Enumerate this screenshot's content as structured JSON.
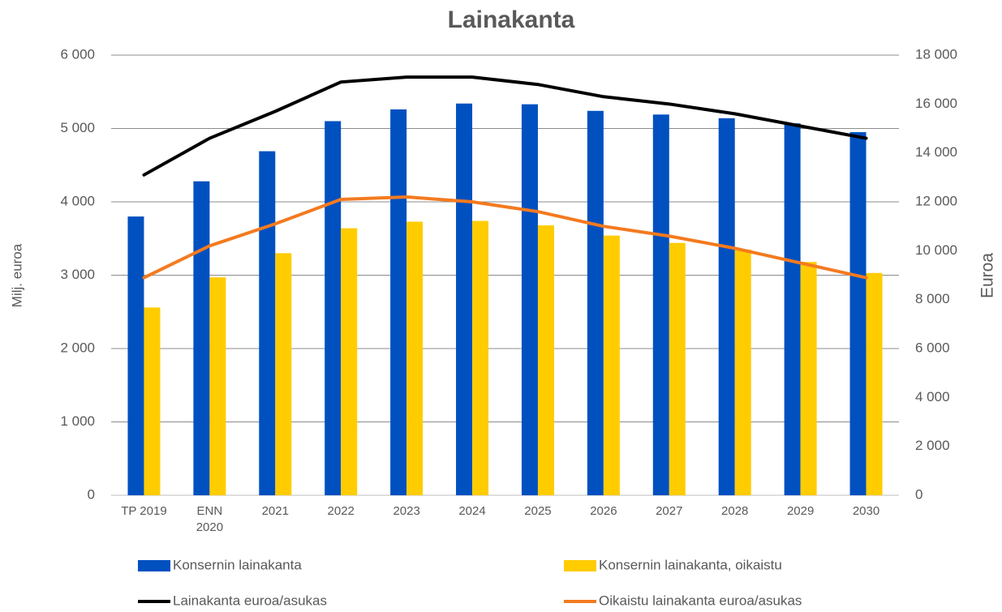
{
  "chart_data": {
    "type": "bar-line",
    "title": "Lainakanta",
    "y_label": "Milj. euroa",
    "y2_label": "Euroa",
    "categories": [
      "TP 2019",
      "ENN 2020",
      "2021",
      "2022",
      "2023",
      "2024",
      "2025",
      "2026",
      "2027",
      "2028",
      "2029",
      "2030"
    ],
    "series": [
      {
        "name": "Konsernin lainakanta",
        "type": "bar",
        "color": "#0050c0",
        "values": [
          3800,
          4280,
          4690,
          5100,
          5260,
          5340,
          5330,
          5240,
          5190,
          5140,
          5070,
          4950
        ]
      },
      {
        "name": "Konsernin lainakanta, oikaistu",
        "type": "bar",
        "color": "#ffcc00",
        "values": [
          2560,
          2970,
          3300,
          3640,
          3730,
          3740,
          3680,
          3540,
          3440,
          3350,
          3180,
          3030
        ]
      },
      {
        "name": "Lainakanta euroa/asukas",
        "type": "line",
        "axis": "y2",
        "color": "#000000",
        "values": [
          13100,
          14600,
          15700,
          16900,
          17100,
          17100,
          16800,
          16300,
          16000,
          15600,
          15100,
          14600
        ]
      },
      {
        "name": "Oikaistu lainakanta euroa/asukas",
        "type": "line",
        "axis": "y2",
        "color": "#f47a1f",
        "values": [
          8900,
          10200,
          11100,
          12100,
          12200,
          12000,
          11600,
          11000,
          10600,
          10100,
          9500,
          8900
        ]
      }
    ],
    "ylim": [
      0,
      6000
    ],
    "yticks": [
      0,
      {
        "value": 1000,
        "label": "1 000"
      },
      {
        "value": 2000,
        "label": "2 000"
      },
      {
        "value": 3000,
        "label": "3 000"
      },
      {
        "value": 4000,
        "label": "4 000"
      },
      {
        "value": 5000,
        "label": "5 000"
      },
      {
        "value": 6000,
        "label": "6 000"
      }
    ],
    "y2lim": [
      0,
      18000
    ],
    "y2ticks": [
      0,
      {
        "value": 2000,
        "label": "2 000"
      },
      {
        "value": 4000,
        "label": "4 000"
      },
      {
        "value": 6000,
        "label": "6 000"
      },
      {
        "value": 8000,
        "label": "8 000"
      },
      {
        "value": 10000,
        "label": "10 000"
      },
      {
        "value": 12000,
        "label": "12 000"
      },
      {
        "value": 14000,
        "label": "14 000"
      },
      {
        "value": 16000,
        "label": "16 000"
      },
      {
        "value": 18000,
        "label": "18 000"
      }
    ],
    "grid": true,
    "legend": "bottom"
  }
}
